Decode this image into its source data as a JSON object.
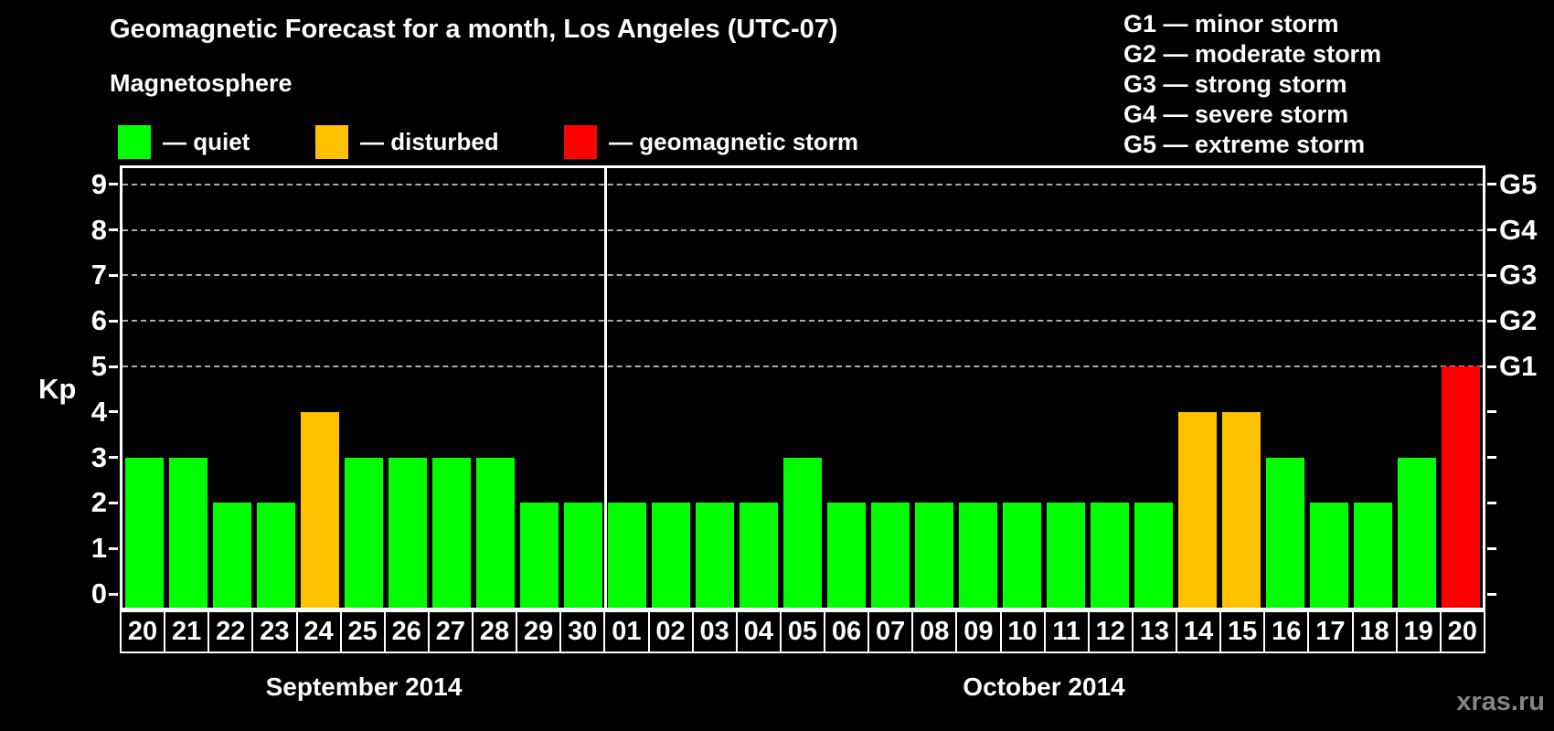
{
  "title": "Geomagnetic Forecast for a month, Los Angeles (UTC-07)",
  "subtitle": "Magnetosphere",
  "legend": {
    "items": [
      {
        "label": "— quiet",
        "state": "quiet"
      },
      {
        "label": "— disturbed",
        "state": "disturbed"
      },
      {
        "label": "— geomagnetic storm",
        "state": "storm"
      }
    ]
  },
  "g_scale_legend": {
    "items": [
      "G1 — minor storm",
      "G2 — moderate storm",
      "G3 — strong storm",
      "G4 — severe storm",
      "G5 — extreme storm"
    ]
  },
  "watermark": "xras.ru",
  "chart_data": {
    "type": "bar",
    "ylabel": "Kp",
    "yticks": [
      0,
      1,
      2,
      3,
      4,
      5,
      6,
      7,
      8,
      9
    ],
    "ylim": [
      -0.36,
      9.44
    ],
    "gridlines_at": [
      5,
      6,
      7,
      8,
      9
    ],
    "grid_on": true,
    "right_axis_labels": [
      {
        "kp": 5,
        "label": "G1"
      },
      {
        "kp": 6,
        "label": "G2"
      },
      {
        "kp": 7,
        "label": "G3"
      },
      {
        "kp": 8,
        "label": "G4"
      },
      {
        "kp": 9,
        "label": "G5"
      }
    ],
    "colors": {
      "quiet": "#00ff00",
      "disturbed": "#ffc000",
      "storm": "#ff0000",
      "axis": "#ffffff",
      "grid": "#aaaaaa",
      "background": "#000000"
    },
    "months": [
      {
        "label": "September 2014",
        "days": [
          "20",
          "21",
          "22",
          "23",
          "24",
          "25",
          "26",
          "27",
          "28",
          "29",
          "30"
        ],
        "kp_values": [
          3,
          3,
          2,
          2,
          4,
          3,
          3,
          3,
          3,
          2,
          2
        ],
        "states": [
          "quiet",
          "quiet",
          "quiet",
          "quiet",
          "disturbed",
          "quiet",
          "quiet",
          "quiet",
          "quiet",
          "quiet",
          "quiet"
        ]
      },
      {
        "label": "October 2014",
        "days": [
          "01",
          "02",
          "03",
          "04",
          "05",
          "06",
          "07",
          "08",
          "09",
          "10",
          "11",
          "12",
          "13",
          "14",
          "15",
          "16",
          "17",
          "18",
          "19",
          "20"
        ],
        "kp_values": [
          2,
          2,
          2,
          2,
          3,
          2,
          2,
          2,
          2,
          2,
          2,
          2,
          2,
          4,
          4,
          3,
          2,
          2,
          3,
          5
        ],
        "states": [
          "quiet",
          "quiet",
          "quiet",
          "quiet",
          "quiet",
          "quiet",
          "quiet",
          "quiet",
          "quiet",
          "quiet",
          "quiet",
          "quiet",
          "quiet",
          "disturbed",
          "disturbed",
          "quiet",
          "quiet",
          "quiet",
          "quiet",
          "storm"
        ]
      }
    ]
  }
}
